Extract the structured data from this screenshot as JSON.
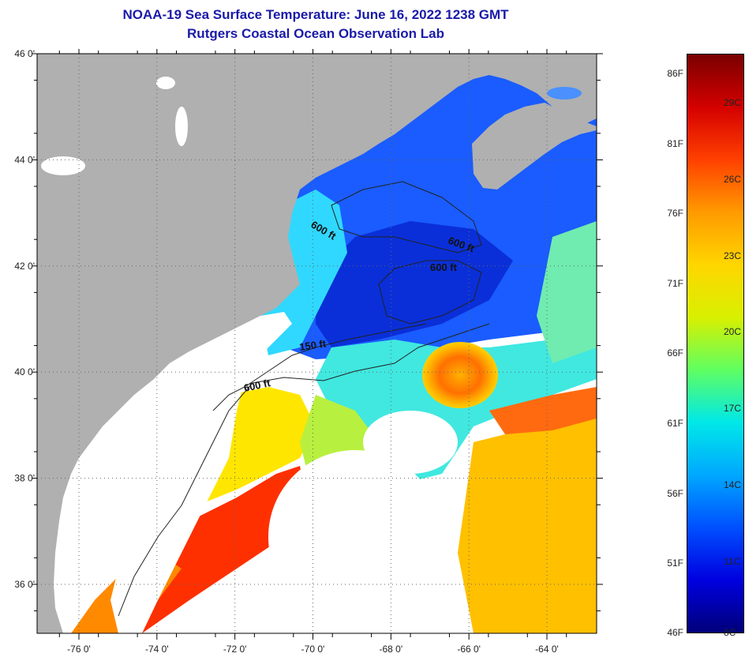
{
  "header": {
    "title": "NOAA-19 Sea Surface Temperature:  June 16, 2022 1238 GMT",
    "subtitle": "Rutgers Coastal Ocean Observation Lab"
  },
  "map": {
    "lat_ticks": [
      {
        "value": 46,
        "label": "46 0'"
      },
      {
        "value": 44,
        "label": "44 0'"
      },
      {
        "value": 42,
        "label": "42 0'"
      },
      {
        "value": 40,
        "label": "40 0'"
      },
      {
        "value": 38,
        "label": "38 0'"
      },
      {
        "value": 36,
        "label": "36 0'"
      }
    ],
    "lon_ticks": [
      {
        "value": -76,
        "label": "-76 0'"
      },
      {
        "value": -74,
        "label": "-74 0'"
      },
      {
        "value": -72,
        "label": "-72 0'"
      },
      {
        "value": -70,
        "label": "-70 0'"
      },
      {
        "value": -68,
        "label": "-68 0'"
      },
      {
        "value": -66,
        "label": "-66 0'"
      },
      {
        "value": -64,
        "label": "-64 0'"
      }
    ],
    "contour_labels": [
      "600 ft",
      "600 ft",
      "600 ft",
      "150 ft",
      "600 ft"
    ],
    "colors": {
      "land": "#b0b0b0",
      "cloud": "#ffffff"
    }
  },
  "colorbar": {
    "fahrenheit": [
      "86F",
      "81F",
      "76F",
      "71F",
      "66F",
      "61F",
      "56F",
      "51F",
      "46F"
    ],
    "celsius": [
      "29C",
      "26C",
      "23C",
      "20C",
      "17C",
      "14C",
      "11C",
      "8C"
    ],
    "colors": [
      "#7a0000",
      "#d40000",
      "#ff4000",
      "#ff9a00",
      "#ffd600",
      "#d8f000",
      "#60ff60",
      "#00e8e8",
      "#00a8ff",
      "#0050ff",
      "#0000e0",
      "#00007a"
    ]
  }
}
